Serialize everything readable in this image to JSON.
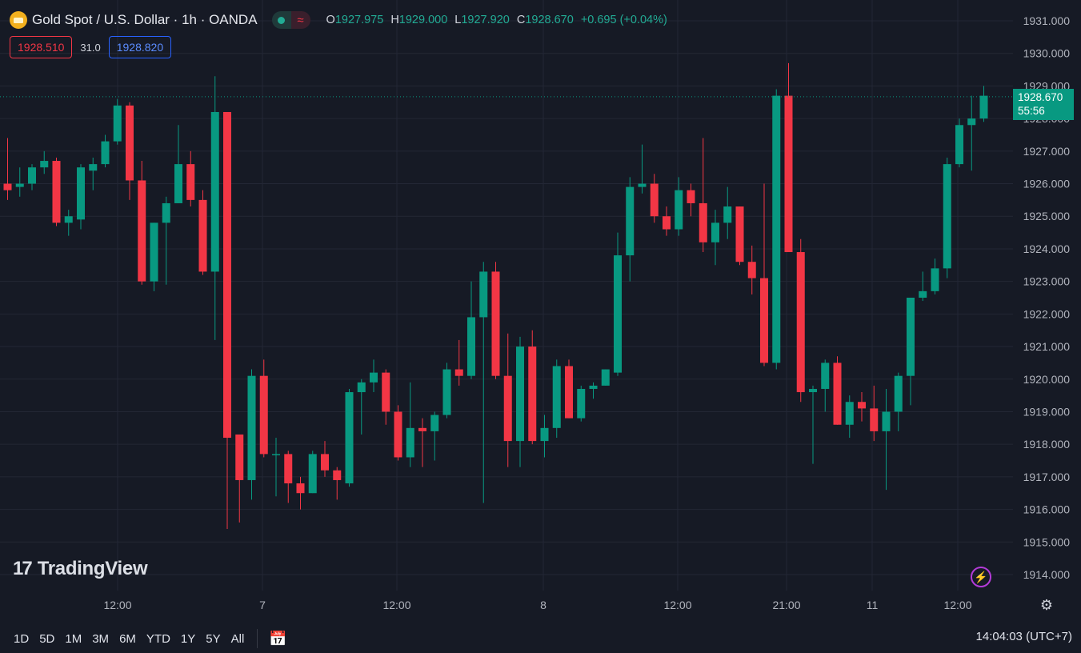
{
  "header": {
    "title": "Gold Spot / U.S. Dollar · 1h · OANDA",
    "open_label": "O",
    "open": "1927.975",
    "high_label": "H",
    "high": "1929.000",
    "low_label": "L",
    "low": "1927.920",
    "close_label": "C",
    "close": "1928.670",
    "change": "+0.695 (+0.04%)",
    "logo_icon": "gold-coin-icon",
    "indicator_icons": [
      "dot-icon",
      "wave-icon"
    ]
  },
  "quote": {
    "sell": "1928.510",
    "spread": "31.0",
    "buy": "1928.820"
  },
  "price_tag": {
    "price": "1928.670",
    "countdown": "55:56"
  },
  "watermark": "TradingView",
  "ranges": [
    "1D",
    "5D",
    "1M",
    "3M",
    "6M",
    "YTD",
    "1Y",
    "5Y",
    "All"
  ],
  "clock": "14:04:03 (UTC+7)",
  "colors": {
    "up": "#089981",
    "down": "#f23645",
    "background": "#161a25",
    "grid": "#232735"
  },
  "chart_data": {
    "type": "candlestick",
    "y_ticks": [
      "1931.000",
      "1930.000",
      "1929.000",
      "1928.000",
      "1927.000",
      "1926.000",
      "1925.000",
      "1924.000",
      "1923.000",
      "1922.000",
      "1921.000",
      "1920.000",
      "1919.000",
      "1918.000",
      "1917.000",
      "1916.000",
      "1915.000",
      "1914.000"
    ],
    "x_ticks": [
      "12:00",
      "7",
      "12:00",
      "8",
      "12:00",
      "21:00",
      "11",
      "12:00"
    ],
    "ylim": [
      1913.7,
      1931.3
    ],
    "last_price": 1928.67,
    "candles": [
      {
        "o": 1926.0,
        "h": 1927.4,
        "l": 1925.5,
        "c": 1925.8
      },
      {
        "o": 1925.9,
        "h": 1926.5,
        "l": 1925.6,
        "c": 1926.0
      },
      {
        "o": 1926.0,
        "h": 1926.6,
        "l": 1925.8,
        "c": 1926.5
      },
      {
        "o": 1926.5,
        "h": 1927.0,
        "l": 1926.3,
        "c": 1926.7
      },
      {
        "o": 1926.7,
        "h": 1926.8,
        "l": 1924.7,
        "c": 1924.8
      },
      {
        "o": 1924.8,
        "h": 1925.2,
        "l": 1924.4,
        "c": 1925.0
      },
      {
        "o": 1924.9,
        "h": 1926.6,
        "l": 1924.6,
        "c": 1926.5
      },
      {
        "o": 1926.4,
        "h": 1926.8,
        "l": 1925.8,
        "c": 1926.6
      },
      {
        "o": 1926.6,
        "h": 1927.5,
        "l": 1926.5,
        "c": 1927.3
      },
      {
        "o": 1927.3,
        "h": 1928.6,
        "l": 1927.2,
        "c": 1928.4
      },
      {
        "o": 1928.4,
        "h": 1928.5,
        "l": 1925.5,
        "c": 1926.1
      },
      {
        "o": 1926.1,
        "h": 1926.7,
        "l": 1922.9,
        "c": 1923.0
      },
      {
        "o": 1923.0,
        "h": 1924.8,
        "l": 1922.7,
        "c": 1924.8
      },
      {
        "o": 1924.8,
        "h": 1925.6,
        "l": 1922.9,
        "c": 1925.4
      },
      {
        "o": 1925.4,
        "h": 1927.8,
        "l": 1925.4,
        "c": 1926.6
      },
      {
        "o": 1926.6,
        "h": 1927.0,
        "l": 1925.3,
        "c": 1925.5
      },
      {
        "o": 1925.5,
        "h": 1925.8,
        "l": 1923.2,
        "c": 1923.3
      },
      {
        "o": 1923.3,
        "h": 1929.3,
        "l": 1921.2,
        "c": 1928.2
      },
      {
        "o": 1928.2,
        "h": 1928.2,
        "l": 1915.4,
        "c": 1918.2
      },
      {
        "o": 1918.3,
        "h": 1918.3,
        "l": 1915.6,
        "c": 1916.9
      },
      {
        "o": 1916.9,
        "h": 1920.3,
        "l": 1916.3,
        "c": 1920.1
      },
      {
        "o": 1920.1,
        "h": 1920.6,
        "l": 1917.6,
        "c": 1917.7
      },
      {
        "o": 1917.7,
        "h": 1918.2,
        "l": 1916.4,
        "c": 1917.7
      },
      {
        "o": 1917.7,
        "h": 1917.8,
        "l": 1916.2,
        "c": 1916.8
      },
      {
        "o": 1916.8,
        "h": 1917.0,
        "l": 1916.0,
        "c": 1916.5
      },
      {
        "o": 1916.5,
        "h": 1917.8,
        "l": 1916.5,
        "c": 1917.7
      },
      {
        "o": 1917.7,
        "h": 1918.1,
        "l": 1917.0,
        "c": 1917.2
      },
      {
        "o": 1917.2,
        "h": 1917.3,
        "l": 1916.3,
        "c": 1916.9
      },
      {
        "o": 1916.8,
        "h": 1919.7,
        "l": 1916.7,
        "c": 1919.6
      },
      {
        "o": 1919.6,
        "h": 1920.0,
        "l": 1918.3,
        "c": 1919.9
      },
      {
        "o": 1919.9,
        "h": 1920.6,
        "l": 1919.6,
        "c": 1920.2
      },
      {
        "o": 1920.2,
        "h": 1920.3,
        "l": 1918.6,
        "c": 1919.0
      },
      {
        "o": 1919.0,
        "h": 1919.2,
        "l": 1917.5,
        "c": 1917.6
      },
      {
        "o": 1917.6,
        "h": 1919.9,
        "l": 1917.3,
        "c": 1918.5
      },
      {
        "o": 1918.5,
        "h": 1918.8,
        "l": 1917.3,
        "c": 1918.4
      },
      {
        "o": 1918.4,
        "h": 1919.0,
        "l": 1917.5,
        "c": 1918.9
      },
      {
        "o": 1918.9,
        "h": 1920.5,
        "l": 1918.8,
        "c": 1920.3
      },
      {
        "o": 1920.3,
        "h": 1921.2,
        "l": 1919.8,
        "c": 1920.1
      },
      {
        "o": 1920.1,
        "h": 1923.0,
        "l": 1920.0,
        "c": 1921.9
      },
      {
        "o": 1921.9,
        "h": 1923.6,
        "l": 1916.2,
        "c": 1923.3
      },
      {
        "o": 1923.3,
        "h": 1923.6,
        "l": 1920.0,
        "c": 1920.1
      },
      {
        "o": 1920.1,
        "h": 1921.4,
        "l": 1917.3,
        "c": 1918.1
      },
      {
        "o": 1918.1,
        "h": 1921.3,
        "l": 1917.3,
        "c": 1921.0
      },
      {
        "o": 1921.0,
        "h": 1921.5,
        "l": 1918.0,
        "c": 1918.1
      },
      {
        "o": 1918.1,
        "h": 1918.9,
        "l": 1917.6,
        "c": 1918.5
      },
      {
        "o": 1918.5,
        "h": 1920.6,
        "l": 1918.2,
        "c": 1920.4
      },
      {
        "o": 1920.4,
        "h": 1920.6,
        "l": 1918.8,
        "c": 1918.8
      },
      {
        "o": 1918.8,
        "h": 1919.8,
        "l": 1918.7,
        "c": 1919.7
      },
      {
        "o": 1919.7,
        "h": 1919.9,
        "l": 1919.4,
        "c": 1919.8
      },
      {
        "o": 1919.8,
        "h": 1920.3,
        "l": 1919.8,
        "c": 1920.3
      },
      {
        "o": 1920.2,
        "h": 1924.5,
        "l": 1920.1,
        "c": 1923.8
      },
      {
        "o": 1923.8,
        "h": 1926.2,
        "l": 1923.0,
        "c": 1925.9
      },
      {
        "o": 1925.9,
        "h": 1927.2,
        "l": 1925.7,
        "c": 1926.0
      },
      {
        "o": 1926.0,
        "h": 1926.3,
        "l": 1924.8,
        "c": 1925.0
      },
      {
        "o": 1925.0,
        "h": 1925.3,
        "l": 1924.4,
        "c": 1924.6
      },
      {
        "o": 1924.6,
        "h": 1926.2,
        "l": 1924.4,
        "c": 1925.8
      },
      {
        "o": 1925.8,
        "h": 1926.0,
        "l": 1925.0,
        "c": 1925.4
      },
      {
        "o": 1925.4,
        "h": 1927.4,
        "l": 1923.9,
        "c": 1924.2
      },
      {
        "o": 1924.2,
        "h": 1925.2,
        "l": 1923.5,
        "c": 1924.8
      },
      {
        "o": 1924.8,
        "h": 1925.9,
        "l": 1924.3,
        "c": 1925.3
      },
      {
        "o": 1925.3,
        "h": 1925.3,
        "l": 1923.5,
        "c": 1923.6
      },
      {
        "o": 1923.6,
        "h": 1924.1,
        "l": 1922.6,
        "c": 1923.1
      },
      {
        "o": 1923.1,
        "h": 1926.0,
        "l": 1920.4,
        "c": 1920.5
      },
      {
        "o": 1920.5,
        "h": 1928.9,
        "l": 1920.3,
        "c": 1928.7
      },
      {
        "o": 1928.7,
        "h": 1929.7,
        "l": 1923.9,
        "c": 1923.9
      },
      {
        "o": 1923.9,
        "h": 1924.3,
        "l": 1919.3,
        "c": 1919.6
      },
      {
        "o": 1919.6,
        "h": 1919.8,
        "l": 1917.4,
        "c": 1919.7
      },
      {
        "o": 1919.7,
        "h": 1920.6,
        "l": 1919.0,
        "c": 1920.5
      },
      {
        "o": 1920.5,
        "h": 1920.7,
        "l": 1918.6,
        "c": 1918.6
      },
      {
        "o": 1918.6,
        "h": 1919.5,
        "l": 1918.2,
        "c": 1919.3
      },
      {
        "o": 1919.3,
        "h": 1919.6,
        "l": 1918.7,
        "c": 1919.1
      },
      {
        "o": 1919.1,
        "h": 1919.8,
        "l": 1918.1,
        "c": 1918.4
      },
      {
        "o": 1918.4,
        "h": 1919.7,
        "l": 1916.6,
        "c": 1919.0
      },
      {
        "o": 1919.0,
        "h": 1920.2,
        "l": 1918.4,
        "c": 1920.1
      },
      {
        "o": 1920.1,
        "h": 1922.5,
        "l": 1919.2,
        "c": 1922.5
      },
      {
        "o": 1922.5,
        "h": 1923.3,
        "l": 1922.4,
        "c": 1922.7
      },
      {
        "o": 1922.7,
        "h": 1923.7,
        "l": 1922.6,
        "c": 1923.4
      },
      {
        "o": 1923.4,
        "h": 1926.8,
        "l": 1923.1,
        "c": 1926.6
      },
      {
        "o": 1926.6,
        "h": 1928.0,
        "l": 1926.5,
        "c": 1927.8
      },
      {
        "o": 1927.8,
        "h": 1928.7,
        "l": 1926.4,
        "c": 1928.0
      },
      {
        "o": 1928.0,
        "h": 1929.0,
        "l": 1927.9,
        "c": 1928.7
      }
    ]
  }
}
